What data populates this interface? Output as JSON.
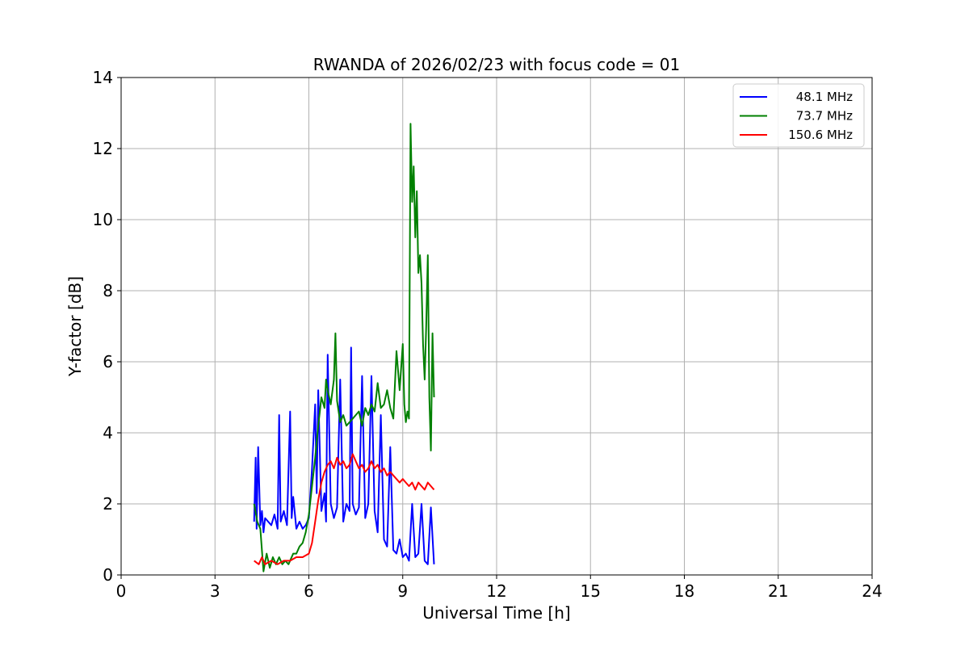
{
  "chart_data": {
    "type": "line",
    "title": "RWANDA of 2026/02/23 with focus code = 01",
    "xlabel": "Universal Time [h]",
    "ylabel": "Y-factor [dB]",
    "xlim": [
      0,
      24
    ],
    "ylim": [
      0,
      14
    ],
    "xticks": [
      0,
      3,
      6,
      9,
      12,
      15,
      18,
      21,
      24
    ],
    "yticks": [
      0,
      2,
      4,
      6,
      8,
      10,
      12,
      14
    ],
    "grid": true,
    "legend_position": "top-right",
    "series": [
      {
        "name": "48.1 MHz",
        "color": "#0000ff",
        "x": [
          4.25,
          4.3,
          4.33,
          4.38,
          4.45,
          4.5,
          4.55,
          4.6,
          4.7,
          4.8,
          4.9,
          5.0,
          5.05,
          5.1,
          5.2,
          5.3,
          5.4,
          5.45,
          5.5,
          5.6,
          5.7,
          5.8,
          5.9,
          6.0,
          6.1,
          6.2,
          6.25,
          6.3,
          6.4,
          6.5,
          6.55,
          6.6,
          6.7,
          6.8,
          6.9,
          7.0,
          7.1,
          7.2,
          7.3,
          7.35,
          7.4,
          7.5,
          7.6,
          7.7,
          7.8,
          7.9,
          8.0,
          8.1,
          8.2,
          8.3,
          8.4,
          8.5,
          8.6,
          8.7,
          8.8,
          8.9,
          9.0,
          9.1,
          9.2,
          9.3,
          9.4,
          9.5,
          9.6,
          9.7,
          9.8,
          9.9,
          10.0
        ],
        "y": [
          1.5,
          3.3,
          1.3,
          3.6,
          1.4,
          1.8,
          1.2,
          1.6,
          1.5,
          1.4,
          1.7,
          1.3,
          4.5,
          1.5,
          1.8,
          1.4,
          4.6,
          1.6,
          2.2,
          1.3,
          1.5,
          1.3,
          1.4,
          1.6,
          3.0,
          4.8,
          2.3,
          5.2,
          1.8,
          2.3,
          1.5,
          6.2,
          2.0,
          1.6,
          1.9,
          5.5,
          1.5,
          2.0,
          1.8,
          6.4,
          2.0,
          1.7,
          1.9,
          5.6,
          1.6,
          2.0,
          5.6,
          1.8,
          1.2,
          4.5,
          1.0,
          0.8,
          3.6,
          0.7,
          0.6,
          1.0,
          0.5,
          0.6,
          0.4,
          2.0,
          0.5,
          0.6,
          2.0,
          0.4,
          0.3,
          1.9,
          0.3
        ]
      },
      {
        "name": "73.7 MHz",
        "color": "#008000",
        "x": [
          4.25,
          4.35,
          4.45,
          4.55,
          4.65,
          4.75,
          4.85,
          4.95,
          5.05,
          5.15,
          5.25,
          5.35,
          5.5,
          5.6,
          5.7,
          5.8,
          5.9,
          6.0,
          6.1,
          6.2,
          6.3,
          6.35,
          6.4,
          6.5,
          6.55,
          6.6,
          6.7,
          6.8,
          6.85,
          6.9,
          7.0,
          7.1,
          7.2,
          7.3,
          7.4,
          7.5,
          7.6,
          7.7,
          7.8,
          7.9,
          8.0,
          8.1,
          8.2,
          8.3,
          8.4,
          8.5,
          8.6,
          8.7,
          8.8,
          8.9,
          9.0,
          9.05,
          9.1,
          9.15,
          9.2,
          9.25,
          9.3,
          9.35,
          9.4,
          9.45,
          9.5,
          9.55,
          9.6,
          9.65,
          9.7,
          9.75,
          9.8,
          9.85,
          9.9,
          9.95,
          10.0
        ],
        "y": [
          2.0,
          1.5,
          1.3,
          0.1,
          0.6,
          0.2,
          0.5,
          0.3,
          0.5,
          0.3,
          0.4,
          0.3,
          0.6,
          0.6,
          0.8,
          0.9,
          1.2,
          1.7,
          2.5,
          3.3,
          4.2,
          4.6,
          5.0,
          4.7,
          5.5,
          5.2,
          4.8,
          5.5,
          6.8,
          4.9,
          4.3,
          4.5,
          4.2,
          4.3,
          4.4,
          4.5,
          4.6,
          4.2,
          4.7,
          4.5,
          4.8,
          4.6,
          5.4,
          4.7,
          4.8,
          5.2,
          4.7,
          4.4,
          6.3,
          5.2,
          6.5,
          4.8,
          4.3,
          4.6,
          4.4,
          12.7,
          10.5,
          11.5,
          9.5,
          10.8,
          8.5,
          9.0,
          8.2,
          6.5,
          5.5,
          7.0,
          9.0,
          5.0,
          3.5,
          6.8,
          5.0
        ]
      },
      {
        "name": "150.6 MHz",
        "color": "#ff0000",
        "x": [
          4.25,
          4.4,
          4.5,
          4.6,
          4.8,
          5.0,
          5.2,
          5.4,
          5.6,
          5.8,
          6.0,
          6.1,
          6.2,
          6.3,
          6.4,
          6.5,
          6.6,
          6.7,
          6.8,
          6.9,
          7.0,
          7.1,
          7.2,
          7.3,
          7.4,
          7.5,
          7.6,
          7.7,
          7.8,
          7.9,
          8.0,
          8.1,
          8.2,
          8.3,
          8.4,
          8.5,
          8.6,
          8.7,
          8.8,
          8.9,
          9.0,
          9.1,
          9.2,
          9.3,
          9.4,
          9.5,
          9.6,
          9.7,
          9.8,
          9.9,
          10.0
        ],
        "y": [
          0.4,
          0.3,
          0.5,
          0.3,
          0.4,
          0.3,
          0.4,
          0.4,
          0.5,
          0.5,
          0.6,
          0.9,
          1.5,
          2.1,
          2.6,
          2.9,
          3.1,
          3.2,
          3.0,
          3.3,
          3.1,
          3.2,
          3.0,
          3.1,
          3.4,
          3.2,
          3.0,
          3.1,
          2.9,
          3.0,
          3.2,
          3.0,
          3.1,
          2.9,
          3.0,
          2.8,
          2.9,
          2.8,
          2.7,
          2.6,
          2.7,
          2.6,
          2.5,
          2.6,
          2.4,
          2.6,
          2.5,
          2.4,
          2.6,
          2.5,
          2.4
        ]
      }
    ]
  }
}
